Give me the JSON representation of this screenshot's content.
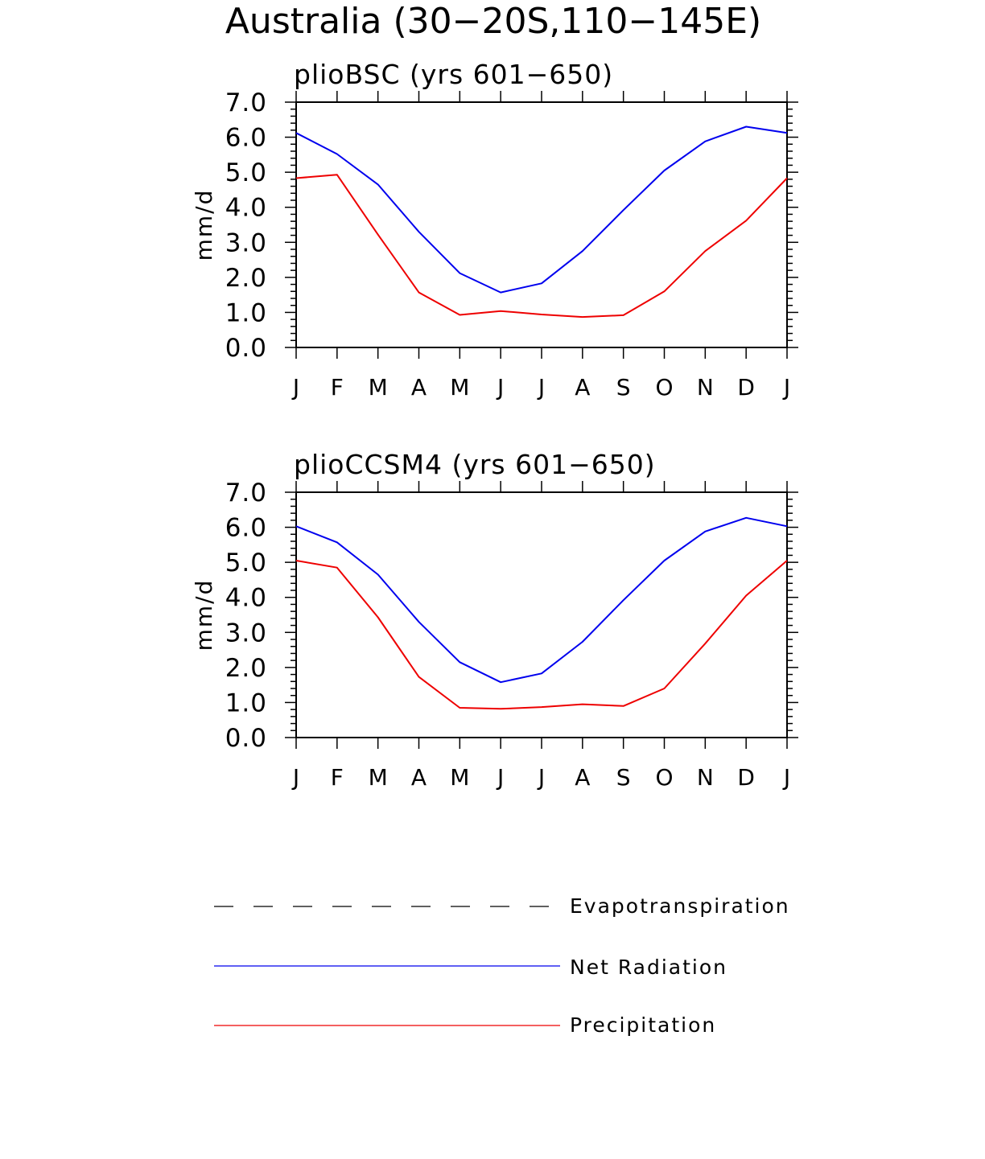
{
  "figure_title": "Australia (30−20S,110−145E)",
  "colors": {
    "net_radiation": "#0000ee",
    "precipitation": "#ee0000",
    "evapotranspiration": "#000000",
    "axis": "#000000"
  },
  "legend": [
    {
      "key": "evapotranspiration",
      "label": "Evapotranspiration",
      "style": "dashed"
    },
    {
      "key": "net_radiation",
      "label": "Net Radiation",
      "style": "solid"
    },
    {
      "key": "precipitation",
      "label": "Precipitation",
      "style": "solid"
    }
  ],
  "chart_data": [
    {
      "type": "line",
      "title": "plioBSC (yrs 601−650)",
      "xlabel": "",
      "ylabel": "mm/d",
      "categories": [
        "J",
        "F",
        "M",
        "A",
        "M",
        "J",
        "J",
        "A",
        "S",
        "O",
        "N",
        "D",
        "J"
      ],
      "ylim": [
        0,
        7
      ],
      "yticks": [
        "0.0",
        "1.0",
        "2.0",
        "3.0",
        "4.0",
        "5.0",
        "6.0",
        "7.0"
      ],
      "series": [
        {
          "name": "Net Radiation",
          "key": "net_radiation",
          "values": [
            6.12,
            5.52,
            4.65,
            3.3,
            2.12,
            1.57,
            1.83,
            2.75,
            3.92,
            5.05,
            5.88,
            6.3,
            6.12
          ]
        },
        {
          "name": "Precipitation",
          "key": "precipitation",
          "values": [
            4.83,
            4.93,
            3.22,
            1.57,
            0.93,
            1.04,
            0.94,
            0.87,
            0.92,
            1.6,
            2.75,
            3.62,
            4.83
          ]
        }
      ]
    },
    {
      "type": "line",
      "title": "plioCCSM4 (yrs 601−650)",
      "xlabel": "",
      "ylabel": "mm/d",
      "categories": [
        "J",
        "F",
        "M",
        "A",
        "M",
        "J",
        "J",
        "A",
        "S",
        "O",
        "N",
        "D",
        "J"
      ],
      "ylim": [
        0,
        7
      ],
      "yticks": [
        "0.0",
        "1.0",
        "2.0",
        "3.0",
        "4.0",
        "5.0",
        "6.0",
        "7.0"
      ],
      "series": [
        {
          "name": "Net Radiation",
          "key": "net_radiation",
          "values": [
            6.03,
            5.57,
            4.65,
            3.3,
            2.15,
            1.58,
            1.83,
            2.73,
            3.92,
            5.05,
            5.88,
            6.27,
            6.03
          ]
        },
        {
          "name": "Precipitation",
          "key": "precipitation",
          "values": [
            5.05,
            4.85,
            3.43,
            1.73,
            0.85,
            0.82,
            0.87,
            0.95,
            0.9,
            1.4,
            2.68,
            4.05,
            5.05
          ]
        }
      ]
    }
  ]
}
